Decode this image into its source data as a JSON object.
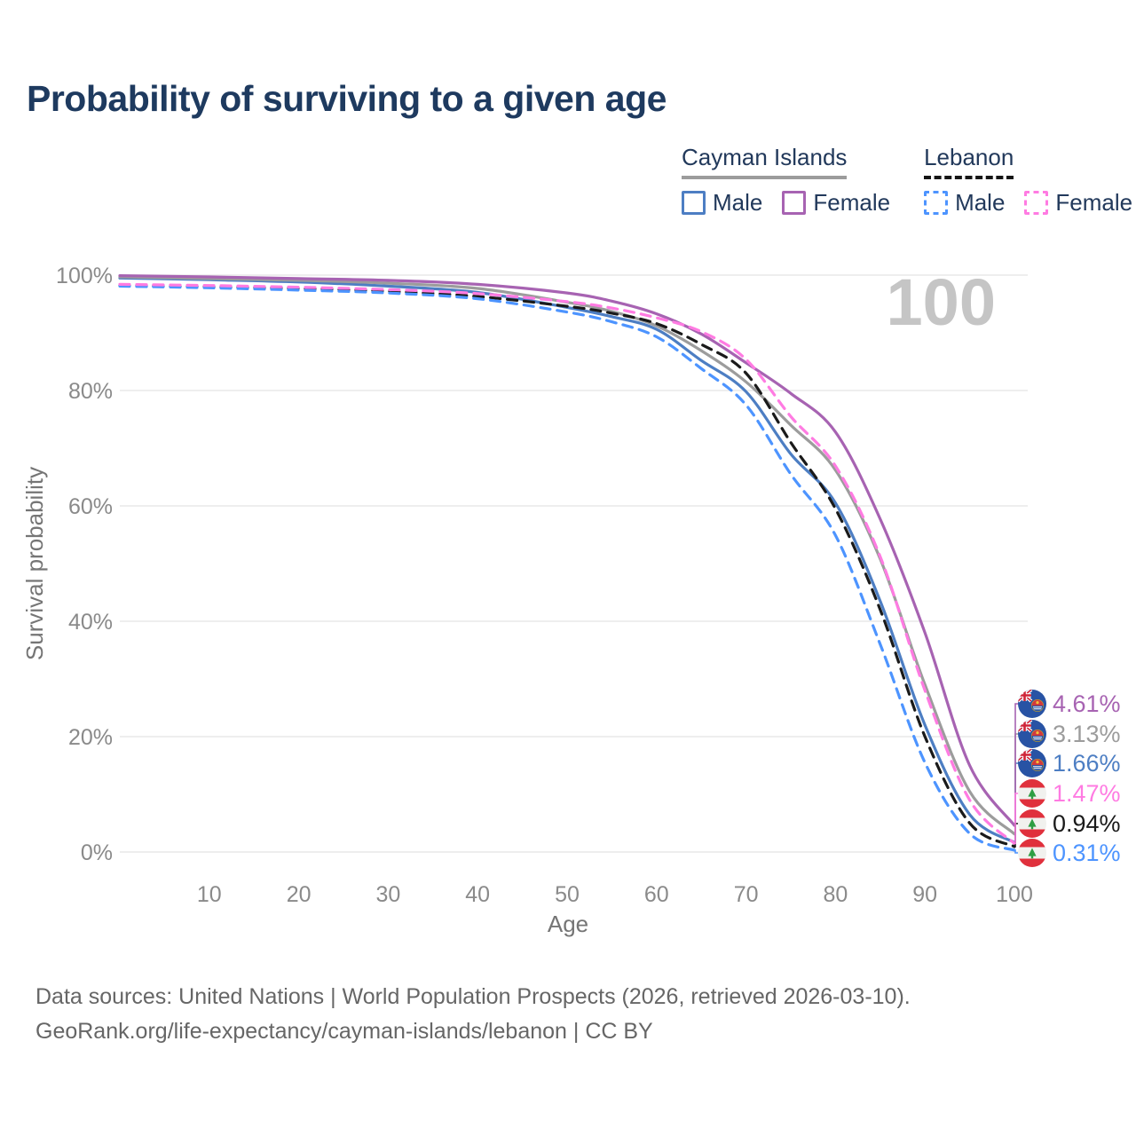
{
  "title": "Probability of surviving to a given age",
  "watermark": "100",
  "legend": {
    "groups": [
      {
        "name": "Cayman Islands",
        "line_style": "solid",
        "underline_color": "#9C9C9C",
        "items": [
          {
            "label": "Male",
            "color": "#4D7EC3"
          },
          {
            "label": "Female",
            "color": "#A763B2"
          }
        ]
      },
      {
        "name": "Lebanon",
        "line_style": "dashed",
        "underline_color": "#151515",
        "items": [
          {
            "label": "Male",
            "color": "#4D94FF"
          },
          {
            "label": "Female",
            "color": "#FF7BE2"
          }
        ]
      }
    ]
  },
  "chart_data": {
    "type": "line",
    "title": "Probability of surviving to a given age",
    "xlabel": "Age",
    "ylabel": "Survival probability",
    "xlim": [
      0,
      100
    ],
    "ylim": [
      0,
      100
    ],
    "grid": true,
    "x_ticks": [
      10,
      20,
      30,
      40,
      50,
      60,
      70,
      80,
      90,
      100
    ],
    "y_ticks": [
      0,
      20,
      40,
      60,
      80,
      100
    ],
    "y_tick_suffix": "%",
    "x": [
      0,
      10,
      20,
      30,
      40,
      50,
      55,
      60,
      65,
      70,
      75,
      80,
      85,
      90,
      95,
      100
    ],
    "series": [
      {
        "name": "Cayman Islands Male",
        "color": "#4D7EC3",
        "dashed": false,
        "end_label": "1.66%",
        "values": [
          99.5,
          99.2,
          98.8,
          98.1,
          97.0,
          94.4,
          92.8,
          90.6,
          85.2,
          79.8,
          69.0,
          60.5,
          43.5,
          22.0,
          6.5,
          1.66
        ]
      },
      {
        "name": "Cayman Islands Both sexes",
        "color": "#9C9C9C",
        "dashed": false,
        "end_label": "3.13%",
        "values": [
          99.7,
          99.4,
          99.1,
          98.6,
          97.7,
          95.3,
          93.7,
          91.2,
          86.9,
          81.5,
          74.0,
          66.2,
          50.8,
          29.0,
          10.5,
          3.13
        ]
      },
      {
        "name": "Cayman Islands Female",
        "color": "#A763B2",
        "dashed": false,
        "end_label": "4.61%",
        "values": [
          99.9,
          99.7,
          99.4,
          99.1,
          98.4,
          96.9,
          95.5,
          93.3,
          89.8,
          84.8,
          79.5,
          72.8,
          57.7,
          38.0,
          15.0,
          4.61
        ]
      },
      {
        "name": "Lebanon Both sexes",
        "color": "#1A1A1A",
        "dashed": true,
        "end_label": "0.94%",
        "values": [
          98.2,
          98.0,
          97.7,
          97.2,
          96.3,
          94.6,
          93.4,
          91.6,
          88.0,
          83.0,
          71.0,
          59.5,
          42.0,
          20.0,
          5.0,
          0.94
        ]
      },
      {
        "name": "Lebanon Male",
        "color": "#4D94FF",
        "dashed": true,
        "end_label": "0.31%",
        "values": [
          98.1,
          97.8,
          97.4,
          96.9,
          95.9,
          93.6,
          91.9,
          89.3,
          83.8,
          77.5,
          65.5,
          54.9,
          36.0,
          15.5,
          3.2,
          0.31
        ]
      },
      {
        "name": "Lebanon Female",
        "color": "#FF7BE2",
        "dashed": true,
        "end_label": "1.47%",
        "values": [
          98.4,
          98.2,
          97.9,
          97.5,
          96.8,
          95.4,
          94.3,
          92.6,
          90.2,
          85.4,
          75.5,
          66.9,
          51.2,
          28.0,
          9.0,
          1.47
        ]
      }
    ]
  },
  "end_labels": [
    {
      "label": "4.61%",
      "color": "#A763B2",
      "flag": "cayman-islands"
    },
    {
      "label": "3.13%",
      "color": "#9C9C9C",
      "flag": "cayman-islands"
    },
    {
      "label": "1.66%",
      "color": "#4D7EC3",
      "flag": "cayman-islands"
    },
    {
      "label": "1.47%",
      "color": "#FF7BE2",
      "flag": "lebanon"
    },
    {
      "label": "0.94%",
      "color": "#1A1A1A",
      "flag": "lebanon"
    },
    {
      "label": "0.31%",
      "color": "#4D94FF",
      "flag": "lebanon"
    }
  ],
  "footer": {
    "line1": "Data sources: United Nations | World Population Prospects (2026, retrieved 2026-03-10).",
    "line2": "GeoRank.org/life-expectancy/cayman-islands/lebanon | CC BY"
  }
}
